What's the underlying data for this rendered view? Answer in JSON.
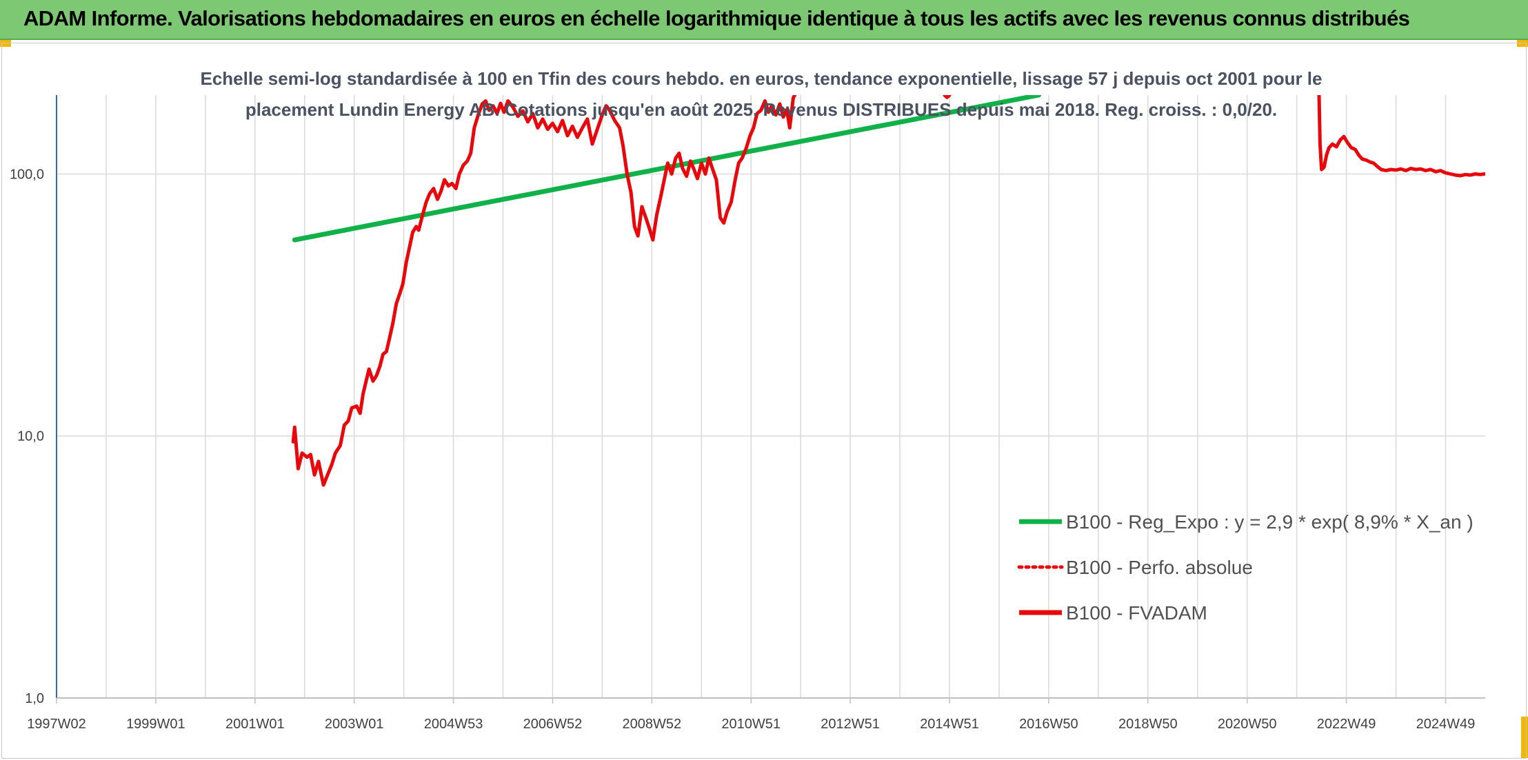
{
  "header": {
    "title": "ADAM Informe. Valorisations hebdomadaires en euros en échelle logarithmique identique à tous les actifs avec les revenus connus distribués"
  },
  "colors": {
    "banner": "#7dc873",
    "regression": "#11b14a",
    "fvadam": "#e8070b",
    "gridline": "#d9d9d9",
    "axis": "#2e6bb3"
  },
  "chart_data": {
    "type": "line",
    "title_lines": [
      "Echelle semi-log standardisée à 100 en Tfin des cours hebdo. en euros, tendance exponentielle, lissage 57 j depuis oct 2001 pour le",
      "placement Lundin Energy AB. Cotations jusqu'en août 2025. Revenus DISTRIBUES depuis mai 2018. Reg. croiss. : 0,0/20."
    ],
    "y_scale": "log",
    "ylim": [
      1,
      200
    ],
    "y_ticks": [
      {
        "value": 1,
        "label": "1,0"
      },
      {
        "value": 10,
        "label": "10,0"
      },
      {
        "value": 100,
        "label": "100,0"
      }
    ],
    "xlim": [
      1997.0,
      2025.8
    ],
    "x_ticks": [
      {
        "value": 1997.0,
        "label": "1997W02"
      },
      {
        "value": 1999.0,
        "label": "1999W01"
      },
      {
        "value": 2001.0,
        "label": "2001W01"
      },
      {
        "value": 2003.0,
        "label": "2003W01"
      },
      {
        "value": 2005.0,
        "label": "2004W53"
      },
      {
        "value": 2007.0,
        "label": "2006W52"
      },
      {
        "value": 2009.0,
        "label": "2008W52"
      },
      {
        "value": 2011.0,
        "label": "2010W51"
      },
      {
        "value": 2013.0,
        "label": "2012W51"
      },
      {
        "value": 2015.0,
        "label": "2014W51"
      },
      {
        "value": 2017.0,
        "label": "2016W50"
      },
      {
        "value": 2019.0,
        "label": "2018W50"
      },
      {
        "value": 2021.0,
        "label": "2020W50"
      },
      {
        "value": 2023.0,
        "label": "2022W49"
      },
      {
        "value": 2025.0,
        "label": "2024W49"
      }
    ],
    "legend_position": "bottom-right",
    "series": [
      {
        "name": "B100 - Reg_Expo : y = 2,9 * exp( 8,9% *  X_an )",
        "style": "solid",
        "points": [
          [
            2001.8,
            56
          ],
          [
            2016.8,
            200
          ]
        ]
      },
      {
        "name": "B100 - Perfo. absolue",
        "style": "dotted",
        "points": []
      },
      {
        "name": "B100 - FVADAM",
        "style": "solid",
        "segments": [
          [
            [
              2001.77,
              9.5
            ],
            [
              2001.8,
              10.8
            ],
            [
              2001.87,
              7.5
            ],
            [
              2001.95,
              8.6
            ],
            [
              2002.05,
              8.3
            ],
            [
              2002.12,
              8.5
            ],
            [
              2002.2,
              7.1
            ],
            [
              2002.28,
              8.0
            ],
            [
              2002.38,
              6.5
            ],
            [
              2002.45,
              7.0
            ],
            [
              2002.55,
              7.8
            ],
            [
              2002.62,
              8.6
            ],
            [
              2002.72,
              9.2
            ],
            [
              2002.8,
              11.0
            ],
            [
              2002.88,
              11.4
            ],
            [
              2002.95,
              12.8
            ],
            [
              2003.05,
              13.0
            ],
            [
              2003.12,
              12.2
            ],
            [
              2003.18,
              14.5
            ],
            [
              2003.25,
              16.5
            ],
            [
              2003.3,
              18.0
            ],
            [
              2003.38,
              16.2
            ],
            [
              2003.45,
              17.0
            ],
            [
              2003.52,
              18.5
            ],
            [
              2003.58,
              20.5
            ],
            [
              2003.65,
              21.0
            ],
            [
              2003.72,
              24.0
            ],
            [
              2003.78,
              27.0
            ],
            [
              2003.85,
              32.0
            ],
            [
              2003.92,
              35.0
            ],
            [
              2003.98,
              38.0
            ],
            [
              2004.05,
              46.0
            ],
            [
              2004.12,
              53.0
            ],
            [
              2004.18,
              60.0
            ],
            [
              2004.25,
              63.0
            ],
            [
              2004.3,
              61.0
            ],
            [
              2004.38,
              70.0
            ],
            [
              2004.45,
              78.0
            ],
            [
              2004.52,
              84.0
            ],
            [
              2004.6,
              88.0
            ],
            [
              2004.68,
              80.0
            ],
            [
              2004.75,
              86.0
            ],
            [
              2004.82,
              95.0
            ],
            [
              2004.9,
              90.0
            ],
            [
              2004.97,
              92.0
            ],
            [
              2005.05,
              88.0
            ],
            [
              2005.12,
              100.0
            ],
            [
              2005.2,
              108.0
            ],
            [
              2005.28,
              112.0
            ],
            [
              2005.35,
              120.0
            ],
            [
              2005.42,
              150.0
            ],
            [
              2005.5,
              168.0
            ],
            [
              2005.58,
              185.0
            ],
            [
              2005.65,
              190.0
            ],
            [
              2005.72,
              175.0
            ],
            [
              2005.8,
              182.0
            ],
            [
              2005.88,
              170.0
            ],
            [
              2005.95,
              186.0
            ],
            [
              2006.02,
              172.0
            ],
            [
              2006.1,
              190.0
            ],
            [
              2006.2,
              180.0
            ],
            [
              2006.3,
              166.0
            ],
            [
              2006.4,
              174.0
            ],
            [
              2006.5,
              158.0
            ],
            [
              2006.6,
              170.0
            ],
            [
              2006.7,
              150.0
            ],
            [
              2006.8,
              162.0
            ],
            [
              2006.9,
              148.0
            ],
            [
              2007.0,
              156.0
            ],
            [
              2007.1,
              145.0
            ],
            [
              2007.2,
              160.0
            ],
            [
              2007.3,
              140.0
            ],
            [
              2007.4,
              152.0
            ],
            [
              2007.5,
              138.0
            ],
            [
              2007.6,
              150.0
            ],
            [
              2007.7,
              162.0
            ],
            [
              2007.8,
              130.0
            ],
            [
              2007.9,
              148.0
            ],
            [
              2008.0,
              168.0
            ],
            [
              2008.08,
              182.0
            ],
            [
              2008.15,
              175.0
            ],
            [
              2008.25,
              160.0
            ],
            [
              2008.35,
              150.0
            ],
            [
              2008.42,
              128.0
            ],
            [
              2008.5,
              100.0
            ],
            [
              2008.58,
              85.0
            ],
            [
              2008.65,
              63.0
            ],
            [
              2008.72,
              58.0
            ],
            [
              2008.8,
              75.0
            ],
            [
              2008.88,
              68.0
            ],
            [
              2008.95,
              62.0
            ],
            [
              2009.02,
              56.0
            ],
            [
              2009.1,
              70.0
            ],
            [
              2009.18,
              82.0
            ],
            [
              2009.25,
              95.0
            ],
            [
              2009.32,
              110.0
            ],
            [
              2009.4,
              100.0
            ],
            [
              2009.48,
              115.0
            ],
            [
              2009.55,
              120.0
            ],
            [
              2009.62,
              105.0
            ],
            [
              2009.7,
              98.0
            ],
            [
              2009.78,
              112.0
            ],
            [
              2009.85,
              104.0
            ],
            [
              2009.92,
              96.0
            ],
            [
              2010.0,
              110.0
            ],
            [
              2010.08,
              100.0
            ],
            [
              2010.15,
              115.0
            ],
            [
              2010.22,
              105.0
            ],
            [
              2010.3,
              95.0
            ],
            [
              2010.38,
              68.0
            ],
            [
              2010.45,
              65.0
            ],
            [
              2010.52,
              72.0
            ],
            [
              2010.6,
              78.0
            ],
            [
              2010.68,
              95.0
            ],
            [
              2010.75,
              110.0
            ],
            [
              2010.82,
              115.0
            ],
            [
              2010.9,
              125.0
            ],
            [
              2010.98,
              140.0
            ],
            [
              2011.05,
              150.0
            ],
            [
              2011.12,
              170.0
            ],
            [
              2011.2,
              175.0
            ],
            [
              2011.28,
              190.0
            ],
            [
              2011.35,
              172.0
            ],
            [
              2011.42,
              182.0
            ],
            [
              2011.5,
              168.0
            ],
            [
              2011.58,
              185.0
            ],
            [
              2011.65,
              165.0
            ],
            [
              2011.72,
              176.0
            ],
            [
              2011.78,
              150.0
            ],
            [
              2011.85,
              195.0
            ],
            [
              2011.88,
              200.0
            ]
          ],
          [
            [
              2014.9,
              200.0
            ],
            [
              2014.95,
              196.0
            ],
            [
              2015.0,
              200.0
            ]
          ],
          [
            [
              2022.45,
              200.0
            ],
            [
              2022.47,
              130.0
            ],
            [
              2022.5,
              104.0
            ],
            [
              2022.55,
              106.0
            ],
            [
              2022.6,
              118.0
            ],
            [
              2022.65,
              126.0
            ],
            [
              2022.72,
              130.0
            ],
            [
              2022.8,
              127.0
            ],
            [
              2022.88,
              135.0
            ],
            [
              2022.95,
              139.0
            ],
            [
              2023.02,
              132.0
            ],
            [
              2023.1,
              126.0
            ],
            [
              2023.18,
              124.0
            ],
            [
              2023.25,
              118.0
            ],
            [
              2023.32,
              114.0
            ],
            [
              2023.4,
              113.0
            ],
            [
              2023.48,
              111.0
            ],
            [
              2023.55,
              110.0
            ],
            [
              2023.62,
              107.0
            ],
            [
              2023.7,
              104.0
            ],
            [
              2023.8,
              103.0
            ],
            [
              2023.9,
              104.0
            ],
            [
              2024.0,
              103.5
            ],
            [
              2024.1,
              104.5
            ],
            [
              2024.2,
              103.0
            ],
            [
              2024.3,
              105.0
            ],
            [
              2024.4,
              104.0
            ],
            [
              2024.5,
              104.5
            ],
            [
              2024.6,
              103.0
            ],
            [
              2024.7,
              104.0
            ],
            [
              2024.8,
              102.0
            ],
            [
              2024.9,
              103.0
            ],
            [
              2025.0,
              101.0
            ],
            [
              2025.1,
              100.0
            ],
            [
              2025.2,
              99.0
            ],
            [
              2025.3,
              98.5
            ],
            [
              2025.4,
              99.5
            ],
            [
              2025.5,
              99.0
            ],
            [
              2025.6,
              100.0
            ],
            [
              2025.7,
              99.5
            ],
            [
              2025.78,
              100.0
            ]
          ]
        ]
      }
    ]
  }
}
